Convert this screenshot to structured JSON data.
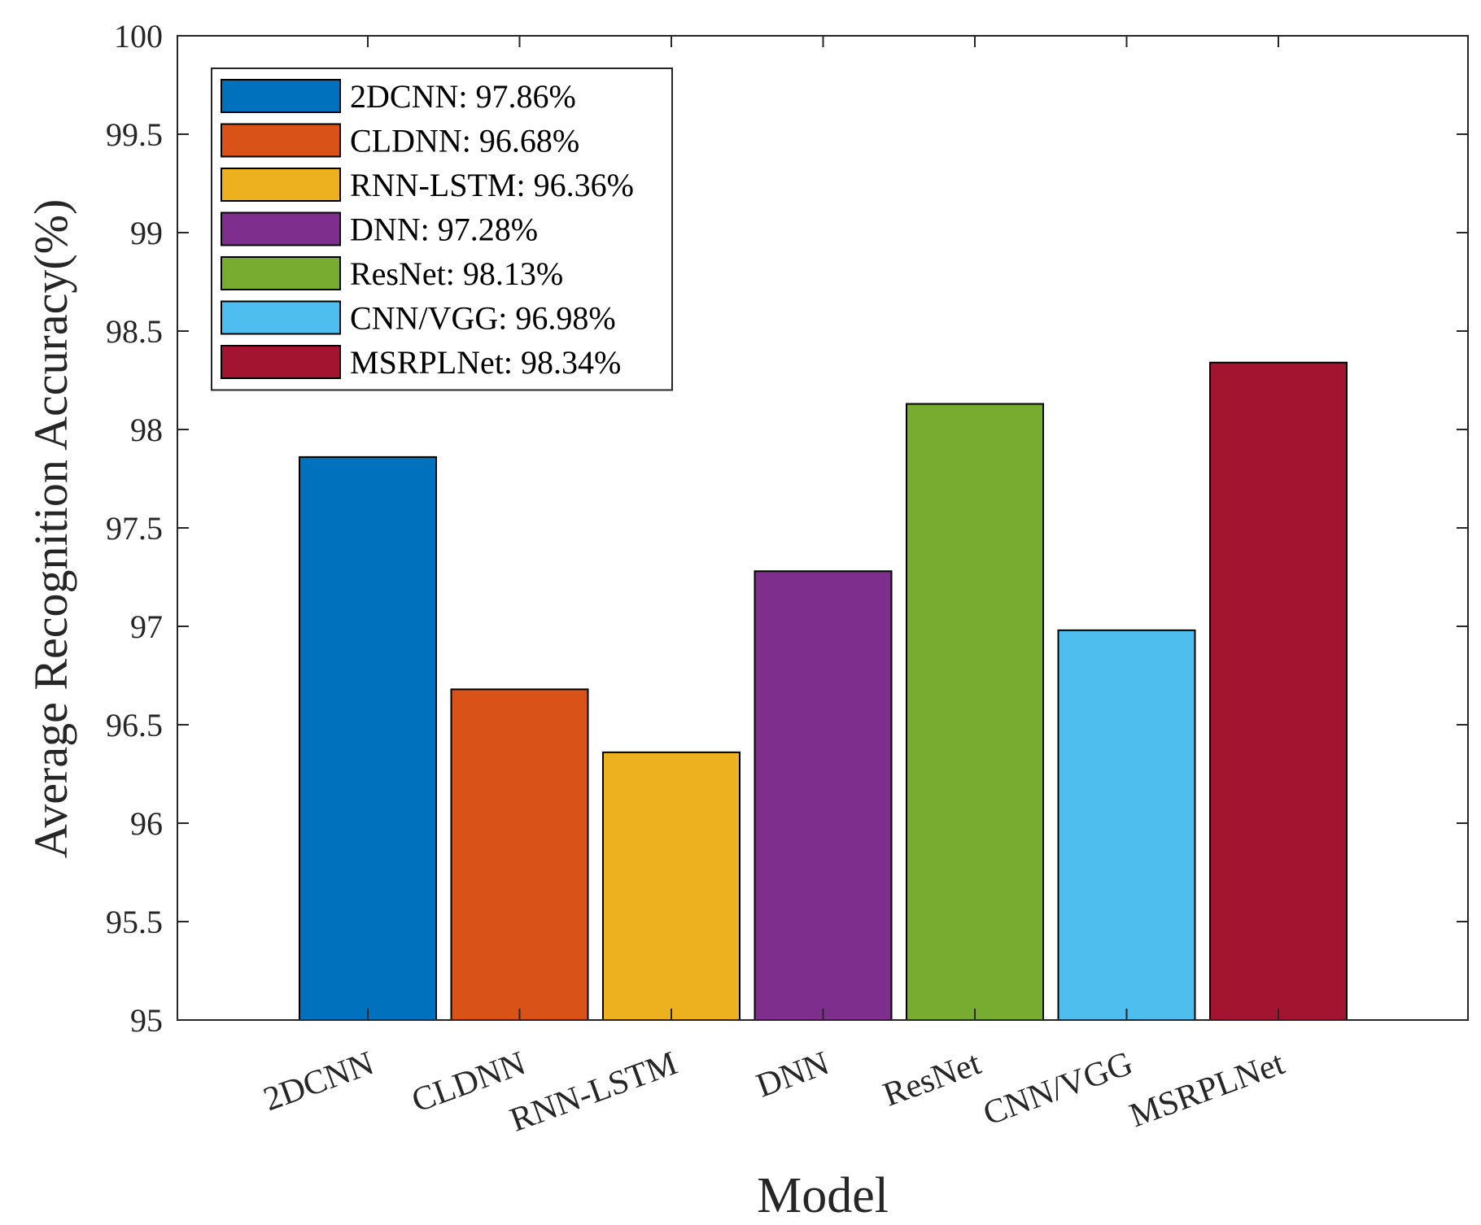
{
  "chart_data": {
    "type": "bar",
    "categories": [
      "2DCNN",
      "CLDNN",
      "RNN-LSTM",
      "DNN",
      "ResNet",
      "CNN/VGG",
      "MSRPLNet"
    ],
    "values": [
      97.86,
      96.68,
      96.36,
      97.28,
      98.13,
      96.98,
      98.34
    ],
    "colors": [
      "#0072BD",
      "#D95319",
      "#EDB120",
      "#7E2F8E",
      "#77AC30",
      "#4DBEEE",
      "#A2142F"
    ],
    "legend": [
      "2DCNN: 97.86%",
      "CLDNN: 96.68%",
      "RNN-LSTM: 96.36%",
      "DNN: 97.28%",
      "ResNet: 98.13%",
      "CNN/VGG: 96.98%",
      "MSRPLNet: 98.34%"
    ],
    "legend_position": "top-left",
    "xlabel": "Model",
    "ylabel": "Average Recognition Accuracy(%)",
    "ylim": [
      95,
      100
    ],
    "yticks": [
      "95",
      "95.5",
      "96",
      "96.5",
      "97",
      "97.5",
      "98",
      "98.5",
      "99",
      "99.5",
      "100"
    ],
    "grid": false
  }
}
